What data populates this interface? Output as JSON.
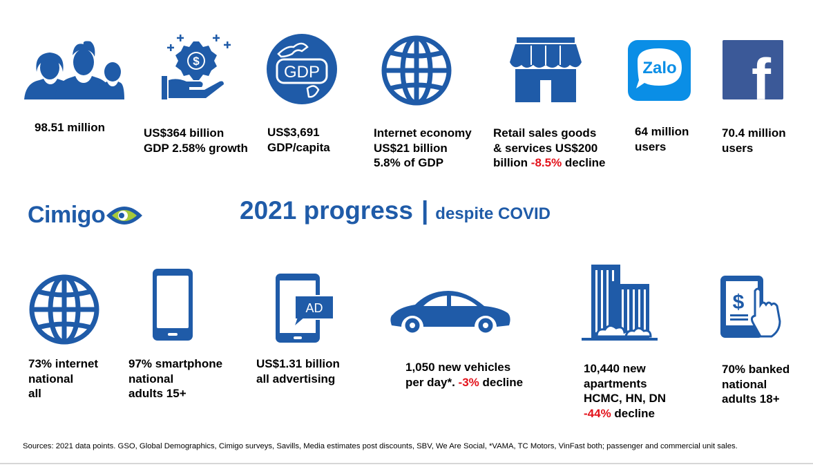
{
  "colors": {
    "primary": "#1f5ba8",
    "negative": "#e3121b",
    "logo_green": "#a6c93a",
    "zalo_blue": "#0a8ee6",
    "facebook_blue": "#3b5998"
  },
  "title": {
    "main": "2021 progress",
    "separator": "|",
    "sub": "despite COVID"
  },
  "logo": {
    "text": "Cimigo"
  },
  "stats_top": [
    {
      "icon": "people-group-icon",
      "lines": [
        "98.51 million"
      ]
    },
    {
      "icon": "money-hand-icon",
      "lines": [
        "US$364 billion",
        "GDP 2.58% growth"
      ]
    },
    {
      "icon": "gdp-globe-icon",
      "lines": [
        "US$3,691",
        "GDP/capita"
      ]
    },
    {
      "icon": "globe-icon",
      "lines": [
        "Internet economy",
        "US$21 billion",
        "5.8% of GDP"
      ]
    },
    {
      "icon": "storefront-icon",
      "lines": [
        "Retail sales goods",
        "& services US$200"
      ],
      "last_pre": "billion ",
      "last_neg": "-8.5%",
      "last_post": " decline"
    },
    {
      "icon": "zalo-logo-icon",
      "lines": [
        "64 million",
        "users"
      ]
    },
    {
      "icon": "facebook-logo-icon",
      "lines": [
        "70.4 million",
        "users"
      ]
    }
  ],
  "stats_bottom": [
    {
      "icon": "globe-icon",
      "lines": [
        "73% internet",
        "national",
        "all"
      ]
    },
    {
      "icon": "smartphone-icon",
      "lines": [
        "97% smartphone",
        "national",
        "adults 15+"
      ]
    },
    {
      "icon": "tablet-ad-icon",
      "lines": [
        "US$1.31 billion",
        "all advertising"
      ]
    },
    {
      "icon": "car-icon",
      "lines": [
        "1,050 new vehicles"
      ],
      "last_pre": "per day*. ",
      "last_neg": "-3%",
      "last_post": " decline"
    },
    {
      "icon": "apartments-icon",
      "lines": [
        "10,440 new",
        "apartments",
        "HCMC, HN, DN"
      ],
      "last_pre": "",
      "last_neg": "-44%",
      "last_post": " decline"
    },
    {
      "icon": "banking-phone-icon",
      "lines": [
        "70% banked",
        "national",
        "adults 18+"
      ]
    }
  ],
  "icon_labels": {
    "gdp": "GDP",
    "ad": "AD",
    "zalo": "Zalo",
    "facebook": "f",
    "dollar": "$"
  },
  "sources": "Sources: 2021 data points. GSO, Global Demographics, Cimigo surveys, Savills, Media estimates post discounts, SBV, We Are Social, *VAMA, TC Motors, VinFast both; passenger and commercial unit sales."
}
